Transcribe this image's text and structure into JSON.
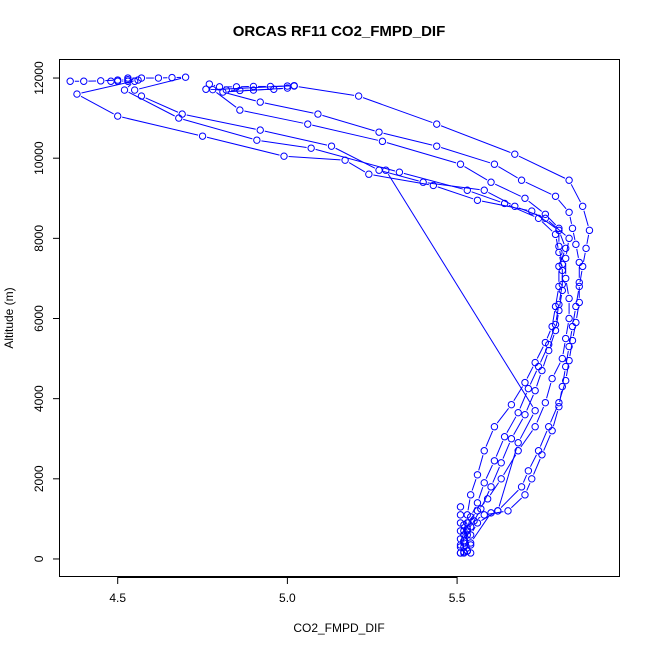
{
  "chart_data": {
    "type": "line",
    "title": "ORCAS RF11 CO2_FMPD_DIF",
    "xlabel": "CO2_FMPD_DIF",
    "ylabel": "Altitude (m)",
    "xlim": [
      4.33,
      5.98
    ],
    "ylim": [
      -450,
      12450
    ],
    "x_ticks": [
      4.5,
      5.0,
      5.5
    ],
    "x_tick_labels": [
      "4.5",
      "5.0",
      "5.5"
    ],
    "y_ticks": [
      0,
      2000,
      4000,
      6000,
      8000,
      10000,
      12000
    ],
    "y_tick_labels": [
      "0",
      "2000",
      "4000",
      "6000",
      "8000",
      "10000",
      "12000"
    ],
    "grid": false,
    "legend": "none",
    "color": "#0000ff",
    "series": [
      {
        "points": [
          [
            4.36,
            11920
          ],
          [
            4.4,
            11920
          ],
          [
            4.45,
            11930
          ],
          [
            4.5,
            11950
          ],
          [
            4.53,
            11960
          ],
          [
            4.56,
            11950
          ],
          [
            4.38,
            11600
          ],
          [
            4.5,
            11050
          ],
          [
            4.75,
            10550
          ],
          [
            4.99,
            10050
          ],
          [
            5.17,
            9950
          ],
          [
            5.24,
            9600
          ],
          [
            5.43,
            9320
          ],
          [
            5.56,
            8950
          ],
          [
            5.72,
            8680
          ],
          [
            5.8,
            8200
          ],
          [
            5.82,
            7750
          ],
          [
            5.8,
            7300
          ],
          [
            5.8,
            6800
          ],
          [
            5.79,
            6300
          ],
          [
            5.78,
            5800
          ],
          [
            5.76,
            5400
          ],
          [
            5.73,
            4900
          ],
          [
            5.7,
            4400
          ],
          [
            5.66,
            3850
          ],
          [
            5.61,
            3300
          ],
          [
            5.58,
            2700
          ],
          [
            5.56,
            2100
          ],
          [
            5.54,
            1600
          ],
          [
            5.53,
            1100
          ],
          [
            5.52,
            700
          ],
          [
            5.51,
            350
          ],
          [
            5.51,
            150
          ]
        ]
      },
      {
        "points": [
          [
            4.53,
            12000
          ],
          [
            4.57,
            12000
          ],
          [
            4.62,
            12000
          ],
          [
            4.66,
            12010
          ],
          [
            4.7,
            12020
          ],
          [
            4.55,
            11700
          ],
          [
            4.57,
            11550
          ],
          [
            4.69,
            11100
          ],
          [
            4.92,
            10700
          ],
          [
            5.13,
            10300
          ],
          [
            5.27,
            9700
          ],
          [
            5.4,
            9400
          ],
          [
            5.58,
            9200
          ],
          [
            5.67,
            8800
          ],
          [
            5.76,
            8500
          ],
          [
            5.83,
            8000
          ],
          [
            5.82,
            7500
          ],
          [
            5.82,
            7000
          ],
          [
            5.83,
            6500
          ],
          [
            5.83,
            6000
          ],
          [
            5.82,
            5500
          ],
          [
            5.81,
            5000
          ],
          [
            5.78,
            4500
          ],
          [
            5.76,
            3900
          ],
          [
            5.73,
            3300
          ],
          [
            5.68,
            2700
          ],
          [
            5.63,
            2000
          ],
          [
            5.59,
            1500
          ],
          [
            5.56,
            1200
          ],
          [
            5.53,
            900
          ],
          [
            5.52,
            600
          ],
          [
            5.52,
            300
          ],
          [
            5.53,
            200
          ]
        ]
      },
      {
        "points": [
          [
            4.48,
            11920
          ],
          [
            4.5,
            11920
          ],
          [
            4.53,
            11920
          ],
          [
            4.55,
            11920
          ],
          [
            4.52,
            11700
          ],
          [
            4.68,
            11000
          ],
          [
            4.91,
            10450
          ],
          [
            5.07,
            10250
          ],
          [
            5.33,
            9650
          ],
          [
            5.53,
            9200
          ],
          [
            5.64,
            8870
          ],
          [
            5.74,
            8500
          ],
          [
            5.79,
            8100
          ],
          [
            5.8,
            7650
          ],
          [
            5.81,
            7200
          ],
          [
            5.81,
            6700
          ],
          [
            5.8,
            6200
          ],
          [
            5.79,
            5700
          ],
          [
            5.77,
            5200
          ],
          [
            5.75,
            4700
          ],
          [
            5.73,
            4200
          ],
          [
            5.7,
            3600
          ],
          [
            5.66,
            3000
          ],
          [
            5.63,
            2400
          ],
          [
            5.6,
            1800
          ],
          [
            5.57,
            1250
          ],
          [
            5.54,
            800
          ],
          [
            5.52,
            400
          ],
          [
            5.52,
            150
          ]
        ]
      },
      {
        "points": [
          [
            4.77,
            11850
          ],
          [
            4.8,
            11780
          ],
          [
            4.85,
            11780
          ],
          [
            4.9,
            11790
          ],
          [
            4.95,
            11790
          ],
          [
            5.0,
            11800
          ],
          [
            5.02,
            11810
          ],
          [
            4.78,
            11710
          ],
          [
            4.86,
            11200
          ],
          [
            5.06,
            10850
          ],
          [
            5.28,
            10420
          ],
          [
            5.51,
            9850
          ],
          [
            5.6,
            9400
          ],
          [
            5.7,
            9000
          ],
          [
            5.76,
            8600
          ],
          [
            5.8,
            8250
          ],
          [
            5.8,
            7800
          ],
          [
            5.81,
            7350
          ],
          [
            5.81,
            6850
          ],
          [
            5.8,
            6350
          ],
          [
            5.79,
            5850
          ],
          [
            5.77,
            5350
          ],
          [
            5.74,
            4800
          ],
          [
            5.71,
            4250
          ],
          [
            5.68,
            3650
          ],
          [
            5.64,
            3050
          ],
          [
            5.61,
            2450
          ],
          [
            5.58,
            1900
          ],
          [
            5.56,
            1400
          ],
          [
            5.54,
            1050
          ],
          [
            5.53,
            750
          ],
          [
            5.52,
            450
          ],
          [
            5.53,
            200
          ]
        ]
      },
      {
        "points": [
          [
            4.76,
            11720
          ],
          [
            4.82,
            11700
          ],
          [
            4.86,
            11690
          ],
          [
            4.9,
            11700
          ],
          [
            4.96,
            11720
          ],
          [
            5.0,
            11750
          ],
          [
            4.81,
            11650
          ],
          [
            4.92,
            11400
          ],
          [
            5.09,
            11100
          ],
          [
            5.27,
            10650
          ],
          [
            5.44,
            10300
          ],
          [
            5.61,
            9850
          ],
          [
            5.69,
            9450
          ],
          [
            5.79,
            9050
          ],
          [
            5.83,
            8650
          ],
          [
            5.84,
            8250
          ],
          [
            5.85,
            7850
          ],
          [
            5.86,
            7400
          ],
          [
            5.86,
            6900
          ],
          [
            5.86,
            6400
          ],
          [
            5.85,
            5900
          ],
          [
            5.84,
            5450
          ],
          [
            5.83,
            4950
          ],
          [
            5.82,
            4450
          ],
          [
            5.8,
            3900
          ],
          [
            5.77,
            3300
          ],
          [
            5.74,
            2700
          ],
          [
            5.71,
            2200
          ],
          [
            5.69,
            1800
          ],
          [
            5.62,
            1200
          ],
          [
            5.56,
            900
          ],
          [
            5.54,
            600
          ],
          [
            5.54,
            350
          ],
          [
            5.53,
            200
          ]
        ]
      },
      {
        "points": [
          [
            5.02,
            11800
          ],
          [
            5.21,
            11550
          ],
          [
            5.44,
            10850
          ],
          [
            5.67,
            10100
          ],
          [
            5.83,
            9450
          ],
          [
            5.87,
            8800
          ],
          [
            5.89,
            8200
          ],
          [
            5.88,
            7750
          ],
          [
            5.87,
            7300
          ],
          [
            5.86,
            6800
          ],
          [
            5.85,
            6300
          ],
          [
            5.84,
            5800
          ],
          [
            5.83,
            5300
          ],
          [
            5.82,
            4800
          ],
          [
            5.81,
            4300
          ],
          [
            5.8,
            3800
          ],
          [
            5.78,
            3200
          ],
          [
            5.75,
            2600
          ],
          [
            5.72,
            2000
          ],
          [
            5.7,
            1600
          ],
          [
            5.65,
            1200
          ],
          [
            5.58,
            1100
          ],
          [
            5.55,
            950
          ],
          [
            5.53,
            700
          ],
          [
            5.52,
            450
          ],
          [
            5.52,
            180
          ]
        ]
      },
      {
        "points": [
          [
            5.51,
            1300
          ],
          [
            5.51,
            1100
          ],
          [
            5.51,
            900
          ],
          [
            5.51,
            700
          ],
          [
            5.51,
            500
          ],
          [
            5.51,
            300
          ],
          [
            5.51,
            150
          ],
          [
            5.54,
            150
          ],
          [
            5.52,
            850
          ],
          [
            5.53,
            600
          ],
          [
            5.54,
            400
          ],
          [
            5.6,
            1150
          ],
          [
            5.62,
            1200
          ],
          [
            5.68,
            2900
          ],
          [
            5.73,
            3700
          ],
          [
            5.29,
            9700
          ]
        ]
      }
    ]
  }
}
